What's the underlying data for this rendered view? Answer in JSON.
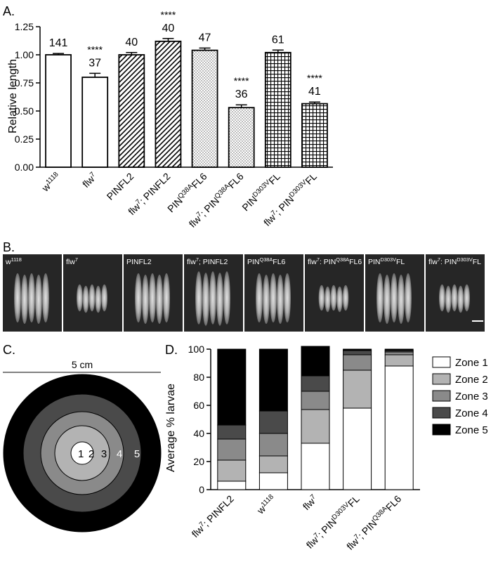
{
  "panel_labels": {
    "a": "A.",
    "b": "B.",
    "c": "C.",
    "d": "D."
  },
  "chart_data": [
    {
      "type": "bar",
      "ylabel": "Relative length",
      "ylim": [
        0,
        1.25
      ],
      "yticks": [
        "0.00",
        "0.25",
        "0.50",
        "0.75",
        "1.00",
        "1.25"
      ],
      "categories": [
        {
          "base": "w",
          "sup": "1118",
          "rest": ""
        },
        {
          "base": "flw",
          "sup": "7",
          "rest": ""
        },
        {
          "base": "PINFL2",
          "sup": "",
          "rest": ""
        },
        {
          "base": "flw",
          "sup": "7",
          "rest": "; PINFL2"
        },
        {
          "base": "PIN",
          "sup": "Q38A",
          "rest": "FL6"
        },
        {
          "base": "flw",
          "sup": "7",
          "rest": "; PIN",
          "sup2": "Q38A",
          "rest2": "FL6"
        },
        {
          "base": "PIN",
          "sup": "D303V",
          "rest": "FL"
        },
        {
          "base": "flw",
          "sup": "7",
          "rest": "; PIN",
          "sup2": "D303V",
          "rest2": "FL"
        }
      ],
      "values": [
        1.0,
        0.8,
        1.0,
        1.12,
        1.04,
        0.53,
        1.02,
        0.565
      ],
      "errors": [
        0.012,
        0.035,
        0.02,
        0.025,
        0.02,
        0.025,
        0.022,
        0.015
      ],
      "patterns": [
        "none",
        "none",
        "diag",
        "diag",
        "dots",
        "dots",
        "grid",
        "grid"
      ],
      "n_labels": [
        "141",
        "37",
        "40",
        "40",
        "47",
        "36",
        "61",
        "41"
      ],
      "significance": [
        "",
        "****",
        "",
        "****",
        "",
        "****",
        "",
        "****"
      ]
    },
    {
      "type": "bar",
      "stacked": true,
      "ylabel": "Average % larvae",
      "ylim": [
        0,
        100
      ],
      "yticks": [
        "0",
        "20",
        "40",
        "60",
        "80",
        "100"
      ],
      "categories": [
        {
          "base": "flw",
          "sup": "7",
          "rest": "; PINFL2"
        },
        {
          "base": "w",
          "sup": "1118",
          "rest": ""
        },
        {
          "base": "flw",
          "sup": "7",
          "rest": ""
        },
        {
          "base": "flw",
          "sup": "7",
          "rest": "; PIN",
          "sup2": "D303V",
          "rest2": "FL"
        },
        {
          "base": "flw",
          "sup": "7",
          "rest": "; PIN",
          "sup2": "Q38A",
          "rest2": "FL6"
        }
      ],
      "series": [
        {
          "name": "Zone 1",
          "color": "#ffffff",
          "values": [
            6,
            12,
            33,
            58,
            88
          ]
        },
        {
          "name": "Zone 2",
          "color": "#b3b3b3",
          "values": [
            15,
            12,
            24,
            27,
            8
          ]
        },
        {
          "name": "Zone 3",
          "color": "#8a8a8a",
          "values": [
            15,
            16,
            13,
            11,
            2
          ]
        },
        {
          "name": "Zone 4",
          "color": "#4a4a4a",
          "values": [
            10,
            16,
            11,
            3,
            1
          ]
        },
        {
          "name": "Zone 5",
          "color": "#000000",
          "values": [
            54,
            44,
            21,
            1,
            1
          ]
        }
      ],
      "legend": "right"
    }
  ],
  "photos": {
    "labels": [
      {
        "base": "w",
        "sup": "1118",
        "rest": ""
      },
      {
        "base": "flw",
        "sup": "7",
        "rest": ""
      },
      {
        "base": "PINFL2",
        "sup": "",
        "rest": ""
      },
      {
        "base": "flw",
        "sup": "7",
        "rest": "; PINFL2"
      },
      {
        "base": "PIN",
        "sup": "Q38A",
        "rest": "FL6"
      },
      {
        "base": "flw",
        "sup": "7",
        "rest": ": PIN",
        "sup2": "Q38A",
        "rest2": "FL6"
      },
      {
        "base": "PIN",
        "sup": "D303V",
        "rest": "FL"
      },
      {
        "base": "flw",
        "sup": "7",
        "rest": ": PIN",
        "sup2": "D303V",
        "rest2": "FL"
      }
    ],
    "larva_scale": [
      1.0,
      0.55,
      1.0,
      1.08,
      1.0,
      0.52,
      1.0,
      0.55
    ],
    "background": "#262626"
  },
  "zones_diagram": {
    "scale_label": "5 cm",
    "ring_labels": [
      "1",
      "2",
      "3",
      "4",
      "5"
    ],
    "ring_colors": [
      "#ffffff",
      "#b3b3b3",
      "#8a8a8a",
      "#4a4a4a",
      "#000000"
    ]
  }
}
